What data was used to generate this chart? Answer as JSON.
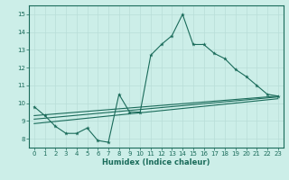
{
  "title": "",
  "xlabel": "Humidex (Indice chaleur)",
  "ylabel": "",
  "bg_color": "#cceee8",
  "line_color": "#1a6b5a",
  "grid_color": "#b8ddd8",
  "xlim": [
    -0.5,
    23.5
  ],
  "ylim": [
    7.5,
    15.5
  ],
  "xticks": [
    0,
    1,
    2,
    3,
    4,
    5,
    6,
    7,
    8,
    9,
    10,
    11,
    12,
    13,
    14,
    15,
    16,
    17,
    18,
    19,
    20,
    21,
    22,
    23
  ],
  "yticks": [
    8,
    9,
    10,
    11,
    12,
    13,
    14,
    15
  ],
  "line1_x": [
    0,
    1,
    2,
    3,
    4,
    5,
    6,
    7,
    8,
    9,
    10,
    11,
    12,
    13,
    14,
    15,
    16,
    17,
    18,
    19,
    20,
    21,
    22,
    23
  ],
  "line1_y": [
    9.8,
    9.3,
    8.7,
    8.3,
    8.3,
    8.6,
    7.9,
    7.8,
    10.5,
    9.5,
    9.5,
    12.7,
    13.3,
    13.8,
    15.0,
    13.3,
    13.3,
    12.8,
    12.5,
    11.9,
    11.5,
    11.0,
    10.5,
    10.4
  ],
  "line2_x": [
    0,
    23
  ],
  "line2_y": [
    9.3,
    10.4
  ],
  "line3_x": [
    0,
    23
  ],
  "line3_y": [
    9.1,
    10.35
  ],
  "line4_x": [
    0,
    23
  ],
  "line4_y": [
    8.85,
    10.25
  ],
  "tick_fontsize": 5.0,
  "xlabel_fontsize": 6.0,
  "linewidth": 0.8,
  "markersize": 2.0
}
